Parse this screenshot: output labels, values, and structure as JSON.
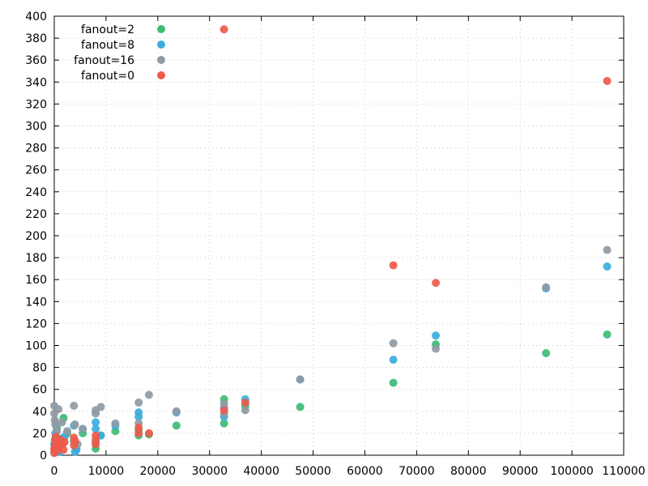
{
  "chart_data": {
    "type": "scatter",
    "xlim": [
      0,
      110000
    ],
    "ylim": [
      0,
      400
    ],
    "x_ticks": [
      0,
      10000,
      20000,
      30000,
      40000,
      50000,
      60000,
      70000,
      80000,
      90000,
      100000,
      110000
    ],
    "y_ticks": [
      0,
      20,
      40,
      60,
      80,
      100,
      120,
      140,
      160,
      180,
      200,
      220,
      240,
      260,
      280,
      300,
      320,
      340,
      360,
      380,
      400
    ],
    "grid": true,
    "legend_position": "top-left",
    "series": [
      {
        "name": "fanout=2",
        "color": "#3cbb75",
        "points": [
          [
            0,
            5
          ],
          [
            100,
            14
          ],
          [
            300,
            12
          ],
          [
            500,
            25
          ],
          [
            800,
            8
          ],
          [
            1200,
            15
          ],
          [
            1800,
            34
          ],
          [
            2500,
            20
          ],
          [
            3800,
            13
          ],
          [
            4200,
            7
          ],
          [
            5500,
            20
          ],
          [
            8000,
            6
          ],
          [
            8000,
            12
          ],
          [
            9000,
            18
          ],
          [
            11800,
            22
          ],
          [
            16300,
            18
          ],
          [
            16300,
            23
          ],
          [
            18300,
            19
          ],
          [
            23600,
            27
          ],
          [
            32800,
            29
          ],
          [
            32800,
            51
          ],
          [
            36900,
            45
          ],
          [
            47500,
            44
          ],
          [
            65500,
            66
          ],
          [
            73700,
            101
          ],
          [
            95000,
            93
          ],
          [
            106800,
            110
          ]
        ]
      },
      {
        "name": "fanout=8",
        "color": "#3cacdc",
        "points": [
          [
            0,
            10
          ],
          [
            200,
            20
          ],
          [
            500,
            8
          ],
          [
            1000,
            3
          ],
          [
            2000,
            17
          ],
          [
            3800,
            27
          ],
          [
            4000,
            3
          ],
          [
            4300,
            5
          ],
          [
            5500,
            24
          ],
          [
            8000,
            24
          ],
          [
            8000,
            30
          ],
          [
            9000,
            18
          ],
          [
            11800,
            27
          ],
          [
            16300,
            35
          ],
          [
            16300,
            39
          ],
          [
            23600,
            39
          ],
          [
            32800,
            35
          ],
          [
            32800,
            43
          ],
          [
            36900,
            51
          ],
          [
            47500,
            69
          ],
          [
            65500,
            87
          ],
          [
            73700,
            109
          ],
          [
            95000,
            152
          ],
          [
            106800,
            172
          ]
        ]
      },
      {
        "name": "fanout=16",
        "color": "#8f9aa4",
        "points": [
          [
            0,
            45
          ],
          [
            0,
            38
          ],
          [
            100,
            32
          ],
          [
            200,
            28
          ],
          [
            500,
            22
          ],
          [
            800,
            42
          ],
          [
            1500,
            30
          ],
          [
            2500,
            22
          ],
          [
            3800,
            45
          ],
          [
            4000,
            28
          ],
          [
            4500,
            10
          ],
          [
            5500,
            24
          ],
          [
            8000,
            38
          ],
          [
            8000,
            41
          ],
          [
            9000,
            44
          ],
          [
            11800,
            29
          ],
          [
            16300,
            48
          ],
          [
            16300,
            29
          ],
          [
            18300,
            55
          ],
          [
            23600,
            40
          ],
          [
            32800,
            47
          ],
          [
            32800,
            38
          ],
          [
            36900,
            41
          ],
          [
            47500,
            69
          ],
          [
            65500,
            102
          ],
          [
            73700,
            97
          ],
          [
            95000,
            153
          ],
          [
            106800,
            187
          ]
        ]
      },
      {
        "name": "fanout=0",
        "color": "#ee5a4b",
        "points": [
          [
            0,
            2
          ],
          [
            0,
            6
          ],
          [
            100,
            9
          ],
          [
            200,
            13
          ],
          [
            300,
            17
          ],
          [
            500,
            4
          ],
          [
            700,
            11
          ],
          [
            900,
            7
          ],
          [
            1200,
            14
          ],
          [
            1500,
            10
          ],
          [
            1800,
            5
          ],
          [
            2000,
            12
          ],
          [
            3800,
            16
          ],
          [
            3800,
            9
          ],
          [
            4000,
            13
          ],
          [
            8000,
            10
          ],
          [
            8000,
            14
          ],
          [
            8000,
            18
          ],
          [
            16300,
            20
          ],
          [
            16300,
            25
          ],
          [
            18300,
            20
          ],
          [
            32800,
            41
          ],
          [
            32800,
            388
          ],
          [
            36900,
            48
          ],
          [
            65500,
            173
          ],
          [
            73700,
            157
          ],
          [
            106800,
            341
          ]
        ]
      }
    ]
  }
}
